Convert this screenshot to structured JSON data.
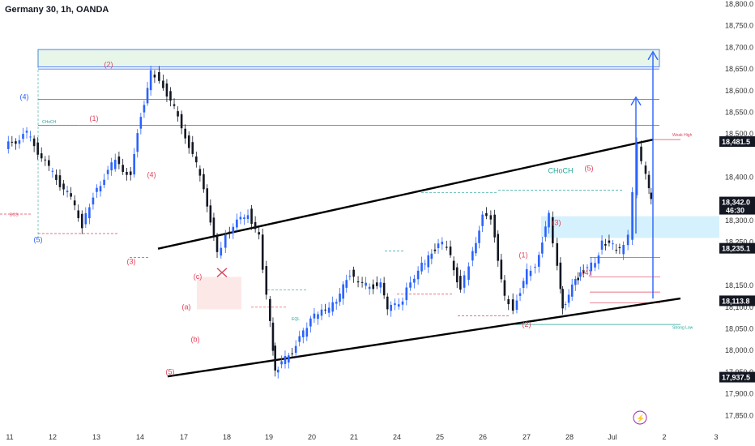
{
  "title": "Germany 30, 1h, OANDA",
  "colors": {
    "up": "#2962ff",
    "down": "#131722",
    "green": "#26a69a",
    "red": "#e0435b",
    "blue_zone": "#b3e5fc",
    "green_zone": "#e8f5e9",
    "line": "#2962ff"
  },
  "chart_data": {
    "type": "line",
    "x_ticks": [
      "11",
      "12",
      "13",
      "14",
      "17",
      "18",
      "19",
      "20",
      "21",
      "24",
      "25",
      "26",
      "27",
      "28",
      "Jul",
      "2",
      "3"
    ],
    "y_ticks": [
      "18,800.0",
      "18,750.0",
      "18,700.0",
      "18,650.0",
      "18,600.0",
      "18,550.0",
      "18,500.0",
      "18,400.0",
      "18,300.0",
      "18,250.0",
      "18,150.0",
      "18,100.0",
      "18,050.0",
      "18,000.0",
      "17,950.0",
      "17,900.0",
      "17,850.0"
    ],
    "ylim": [
      17850,
      18800
    ],
    "price_boxes": [
      {
        "label": "18,481.5",
        "value": 18481.5,
        "color": "#131722"
      },
      {
        "label": "18,342.0",
        "sub": "46:30",
        "value": 18342,
        "color": "#131722"
      },
      {
        "label": "18,235.1",
        "value": 18235.1,
        "color": "#131722"
      },
      {
        "label": "18,113.8",
        "value": 18113.8,
        "color": "#131722"
      },
      {
        "label": "17,937.5",
        "value": 17937.5,
        "color": "#131722"
      }
    ],
    "series": [
      {
        "values": [
          [
            0,
            18470
          ],
          [
            1,
            18500
          ],
          [
            2,
            18420
          ],
          [
            3,
            18350
          ],
          [
            3.5,
            18290
          ],
          [
            4,
            18360
          ],
          [
            5,
            18440
          ],
          [
            5.7,
            18400
          ],
          [
            6,
            18510
          ],
          [
            6.6,
            18640
          ],
          [
            7,
            18630
          ],
          [
            8,
            18520
          ],
          [
            9,
            18380
          ],
          [
            9.6,
            18220
          ],
          [
            10,
            18270
          ],
          [
            11,
            18320
          ],
          [
            11.5,
            18260
          ],
          [
            12,
            18060
          ],
          [
            12.2,
            17950
          ],
          [
            13,
            18000
          ],
          [
            13.5,
            18040
          ],
          [
            14,
            18080
          ],
          [
            14.5,
            18090
          ],
          [
            15,
            18110
          ],
          [
            15.6,
            18180
          ],
          [
            16,
            18150
          ],
          [
            17,
            18150
          ],
          [
            17.3,
            18090
          ],
          [
            18,
            18120
          ],
          [
            18.7,
            18190
          ],
          [
            19,
            18200
          ],
          [
            19.6,
            18250
          ],
          [
            20,
            18240
          ],
          [
            20.6,
            18140
          ],
          [
            21,
            18200
          ],
          [
            21.6,
            18310
          ],
          [
            22,
            18310
          ],
          [
            22.6,
            18120
          ],
          [
            23,
            18100
          ],
          [
            23.6,
            18180
          ],
          [
            24,
            18200
          ],
          [
            24.6,
            18310
          ],
          [
            25,
            18200
          ],
          [
            25.2,
            18100
          ],
          [
            25.8,
            18160
          ],
          [
            26,
            18180
          ],
          [
            26.7,
            18200
          ],
          [
            27,
            18250
          ],
          [
            27.5,
            18240
          ],
          [
            27.8,
            18230
          ],
          [
            28.2,
            18260
          ],
          [
            28.6,
            18470
          ],
          [
            29,
            18400
          ],
          [
            29.2,
            18342
          ]
        ]
      }
    ],
    "annotations": {
      "wave_labels": [
        "(4)",
        "(5)",
        "(2)",
        "(1)",
        "(4)",
        "(3)",
        "(5)",
        "(a)",
        "(b)",
        "(c)",
        "(1)",
        "(2)",
        "(3)",
        "(4)",
        "(5)"
      ],
      "choch_big": "CHoCH",
      "small_labels": [
        "CHoCH",
        "BOS",
        "EQL",
        "Weak High",
        "Strong Low"
      ]
    }
  }
}
